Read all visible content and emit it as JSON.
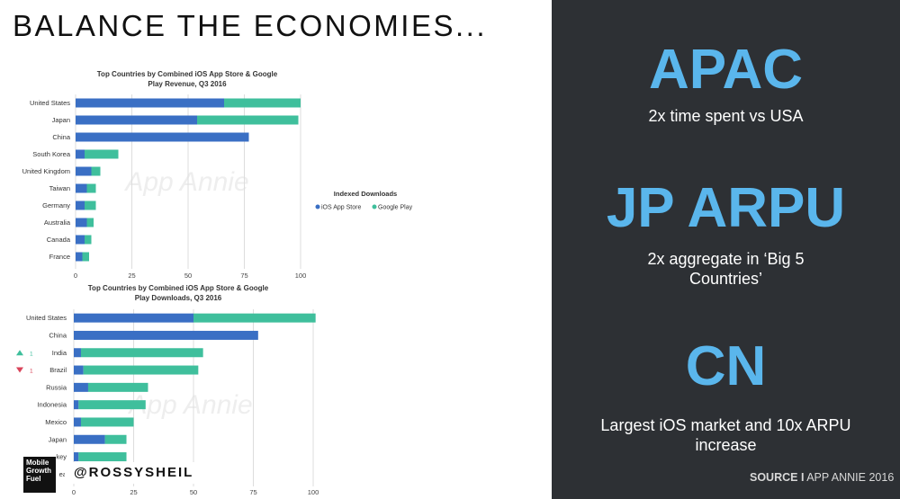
{
  "slide": {
    "title": "BALANCE THE ECONOMIES...",
    "handle": "@ROSSYSHEIL",
    "logo_text": [
      "Mobile",
      "Growth",
      "Fuel"
    ]
  },
  "right_panel": {
    "sections": [
      {
        "heading": "APAC",
        "text": "2x time spent vs USA"
      },
      {
        "heading": "JP ARPU",
        "text": "2x aggregate in ‘Big 5 Countries’"
      },
      {
        "heading": "CN",
        "text": "Largest iOS market and 10x ARPU increase"
      }
    ],
    "source_bold": "SOURCE I",
    "source_rest": " APP ANNIE 2016",
    "accent_color": "#5ab6ec",
    "bg_color": "#2d3034"
  },
  "chart_data": [
    {
      "type": "bar",
      "orientation": "horizontal",
      "stacked": true,
      "title": "Top Countries by Combined iOS App Store & Google Play Revenue, Q3 2016",
      "watermark": "App Annie",
      "categories": [
        "United States",
        "Japan",
        "China",
        "South Korea",
        "United Kingdom",
        "Taiwan",
        "Germany",
        "Australia",
        "Canada",
        "France"
      ],
      "series": [
        {
          "name": "iOS App Store",
          "color": "#3a6fc4",
          "values": [
            66,
            54,
            77,
            4,
            7,
            5,
            4,
            5,
            4,
            3
          ]
        },
        {
          "name": "Google Play",
          "color": "#3fbf9c",
          "values": [
            34,
            45,
            0,
            15,
            4,
            4,
            5,
            3,
            3,
            3
          ]
        }
      ],
      "xlim": [
        0,
        100
      ],
      "xticks": [
        0,
        25,
        50,
        75,
        100
      ],
      "legend": {
        "title": "Indexed Downloads",
        "placement": "right"
      }
    },
    {
      "type": "bar",
      "orientation": "horizontal",
      "stacked": true,
      "title": "Top Countries by Combined iOS App Store & Google Play Downloads, Q3 2016",
      "watermark": "App Annie",
      "categories": [
        "United States",
        "China",
        "India",
        "Brazil",
        "Russia",
        "Indonesia",
        "Mexico",
        "Japan",
        "Turkey",
        "South Korea"
      ],
      "visible_labels": [
        "United States",
        "China",
        "India",
        "Brazil",
        "Russia",
        "Indonesia",
        "Mexico",
        "Japan",
        "key",
        "ea"
      ],
      "series": [
        {
          "name": "iOS App Store",
          "color": "#3a6fc4",
          "values": [
            50,
            77,
            3,
            4,
            6,
            2,
            3,
            13,
            2,
            3
          ]
        },
        {
          "name": "Google Play",
          "color": "#3fbf9c",
          "values": [
            51,
            0,
            51,
            48,
            25,
            28,
            22,
            9,
            20,
            20
          ]
        }
      ],
      "xlim": [
        0,
        100
      ],
      "xticks": [
        0,
        25,
        50,
        75,
        100
      ],
      "rank_changes": [
        {
          "category": "India",
          "direction": "up",
          "label": "1",
          "color": "#3fbf9c"
        },
        {
          "category": "Brazil",
          "direction": "down",
          "label": "1",
          "color": "#d9445a"
        }
      ]
    }
  ]
}
